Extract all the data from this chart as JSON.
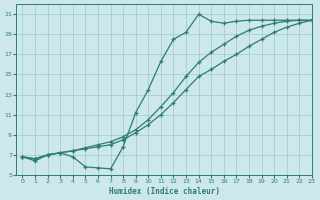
{
  "xlabel": "Humidex (Indice chaleur)",
  "bg_color": "#cce8ea",
  "grid_color": "#a0c8cc",
  "line_color": "#2e7d6e",
  "ylim": [
    5,
    22
  ],
  "xlim": [
    -0.5,
    23
  ],
  "yticks": [
    5,
    7,
    9,
    11,
    13,
    15,
    17,
    19,
    21
  ],
  "xticks": [
    0,
    1,
    2,
    3,
    4,
    5,
    6,
    7,
    8,
    9,
    10,
    11,
    12,
    13,
    14,
    15,
    16,
    17,
    18,
    19,
    20,
    21,
    22,
    23
  ],
  "line1_x": [
    0,
    1,
    2,
    3,
    4,
    5,
    6,
    7,
    8,
    9,
    10,
    11,
    12,
    13,
    14,
    15,
    16,
    17,
    18,
    19,
    20,
    21,
    22,
    23
  ],
  "line1_y": [
    6.8,
    6.4,
    7.0,
    7.2,
    6.8,
    5.8,
    5.7,
    5.6,
    7.8,
    11.2,
    13.5,
    16.3,
    18.5,
    19.2,
    21.0,
    20.3,
    20.1,
    20.3,
    20.4,
    20.4,
    20.4,
    20.4,
    20.4,
    20.4
  ],
  "line2_x": [
    0,
    1,
    2,
    3,
    4,
    5,
    6,
    7,
    8,
    9,
    10,
    11,
    12,
    13,
    14,
    15,
    16,
    17,
    18,
    19,
    20,
    21,
    22,
    23
  ],
  "line2_y": [
    6.8,
    6.6,
    7.0,
    7.2,
    7.4,
    7.6,
    7.8,
    8.0,
    8.5,
    9.2,
    10.0,
    11.0,
    12.2,
    13.5,
    14.8,
    15.5,
    16.3,
    17.0,
    17.8,
    18.5,
    19.2,
    19.7,
    20.1,
    20.4
  ],
  "line3_x": [
    0,
    1,
    2,
    3,
    4,
    5,
    6,
    7,
    8,
    9,
    10,
    11,
    12,
    13,
    14,
    15,
    16,
    17,
    18,
    19,
    20,
    21,
    22,
    23
  ],
  "line3_y": [
    6.8,
    6.6,
    7.0,
    7.2,
    7.4,
    7.7,
    8.0,
    8.3,
    8.8,
    9.5,
    10.5,
    11.8,
    13.2,
    14.8,
    16.2,
    17.2,
    18.0,
    18.8,
    19.4,
    19.8,
    20.1,
    20.3,
    20.4,
    20.4
  ]
}
